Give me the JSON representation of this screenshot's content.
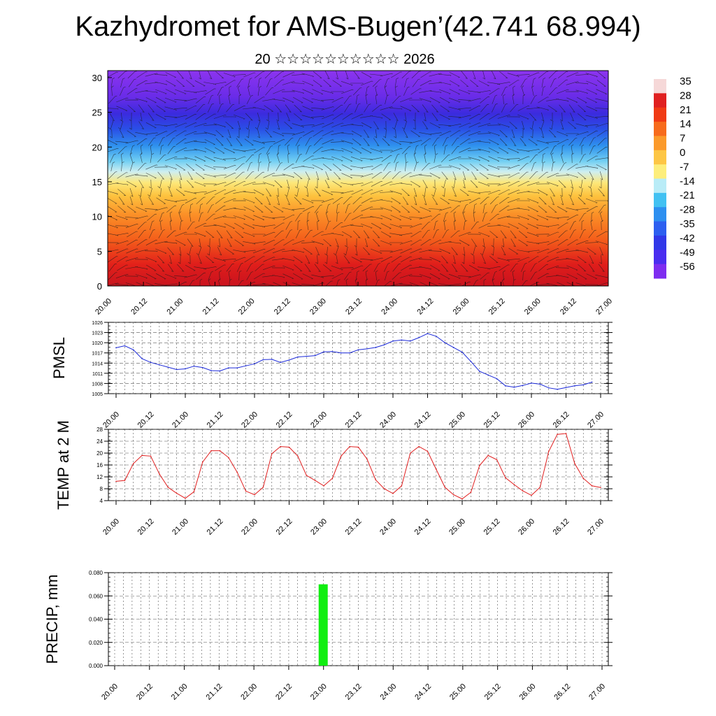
{
  "header": {
    "title": "Kazhydromet for AMS-Bugen’(42.741 68.994)",
    "subtitle": "20 ☆☆☆☆☆☆☆☆☆☆ 2026"
  },
  "chart_data": [
    {
      "type": "heatmap",
      "name": "upper-air-cross-section",
      "title": "",
      "ylabel": "",
      "ylim": [
        0,
        31
      ],
      "yticks": [
        "0",
        "5",
        "10",
        "15",
        "20",
        "25",
        "30"
      ],
      "xticks": [
        "20.00",
        "20.12",
        "21.00",
        "21.12",
        "22.00",
        "22.12",
        "23.00",
        "23.12",
        "24.00",
        "24.12",
        "25.00",
        "25.12",
        "26.00",
        "26.12",
        "27.00"
      ],
      "colorbar": {
        "labels": [
          "35",
          "28",
          "21",
          "14",
          "7",
          "0",
          "-7",
          "-14",
          "-21",
          "-28",
          "-35",
          "-42",
          "-49",
          "-56"
        ],
        "colors": [
          "#f6d8d8",
          "#e02020",
          "#f03a14",
          "#f76b1c",
          "#fb9a2b",
          "#fdc645",
          "#fdee7c",
          "#b9ecf7",
          "#42c1f2",
          "#2d8ff0",
          "#2d5ff0",
          "#3138e8",
          "#4a2df0",
          "#7e2df0"
        ]
      },
      "overlay": "wind barbs"
    },
    {
      "type": "line",
      "name": "pmsl",
      "ylabel": "PMSL",
      "ylim": [
        1005,
        1026
      ],
      "yticks": [
        "1005",
        "1008",
        "1011",
        "1014",
        "1017",
        "1020",
        "1023",
        "1026"
      ],
      "xticks": [
        "20.00",
        "20.12",
        "21.00",
        "21.12",
        "22.00",
        "22.12",
        "23.00",
        "23.12",
        "24.00",
        "24.12",
        "25.00",
        "25.12",
        "26.00",
        "26.12",
        "27.00"
      ],
      "color": "#1c2ad8",
      "step_hours": 3,
      "values": [
        1018.5,
        1019.1,
        1017.9,
        1015.3,
        1014.2,
        1013.5,
        1012.8,
        1012.1,
        1012.3,
        1013.1,
        1012.7,
        1011.8,
        1011.7,
        1012.6,
        1012.6,
        1013.2,
        1013.8,
        1015.0,
        1015.1,
        1014.2,
        1014.9,
        1015.8,
        1016.0,
        1016.2,
        1017.3,
        1017.4,
        1017.0,
        1017.0,
        1017.9,
        1018.2,
        1018.6,
        1019.4,
        1020.5,
        1020.8,
        1020.5,
        1021.5,
        1022.7,
        1021.9,
        1020.0,
        1018.6,
        1017.2,
        1014.5,
        1011.6,
        1010.5,
        1009.4,
        1007.3,
        1006.9,
        1007.4,
        1008.1,
        1007.8,
        1006.7,
        1006.3,
        1006.8,
        1007.3,
        1007.6,
        1008.4
      ]
    },
    {
      "type": "line",
      "name": "temp-2m",
      "ylabel": "TEMP at 2 M",
      "ylim": [
        4,
        28
      ],
      "yticks": [
        "4",
        "8",
        "12",
        "16",
        "20",
        "24",
        "28"
      ],
      "xticks": [
        "20.00",
        "20.12",
        "21.00",
        "21.12",
        "22.00",
        "22.12",
        "23.00",
        "23.12",
        "24.00",
        "24.12",
        "25.00",
        "25.12",
        "26.00",
        "26.12",
        "27.00"
      ],
      "color": "#e01e1e",
      "step_hours": 3,
      "values": [
        10.5,
        10.8,
        16.5,
        19.2,
        19.0,
        13.0,
        8.5,
        6.5,
        4.8,
        7.0,
        17.0,
        20.8,
        20.8,
        18.5,
        13.5,
        7.2,
        6.0,
        8.5,
        19.8,
        22.2,
        22.0,
        19.0,
        12.5,
        10.8,
        9.0,
        11.5,
        19.0,
        22.2,
        22.0,
        18.0,
        11.0,
        8.0,
        6.4,
        9.0,
        20.0,
        22.2,
        20.6,
        14.5,
        8.5,
        6.0,
        4.6,
        6.8,
        15.8,
        19.2,
        17.8,
        11.7,
        9.4,
        7.3,
        5.8,
        8.5,
        20.6,
        26.3,
        26.6,
        16.5,
        11.5,
        9.0,
        8.4
      ]
    },
    {
      "type": "bar",
      "name": "precip",
      "ylabel": "PRECIP, mm",
      "ylim": [
        0,
        0.08
      ],
      "yticks": [
        "0.000",
        "0.020",
        "0.040",
        "0.060",
        "0.080"
      ],
      "xticks": [
        "20.00",
        "20.12",
        "21.00",
        "21.12",
        "22.00",
        "22.12",
        "23.00",
        "23.12",
        "24.00",
        "24.12",
        "25.00",
        "25.12",
        "26.00",
        "26.12",
        "27.00"
      ],
      "color": "#11ee11",
      "bars": [
        {
          "x": "23.00",
          "value": 0.07
        }
      ]
    }
  ]
}
